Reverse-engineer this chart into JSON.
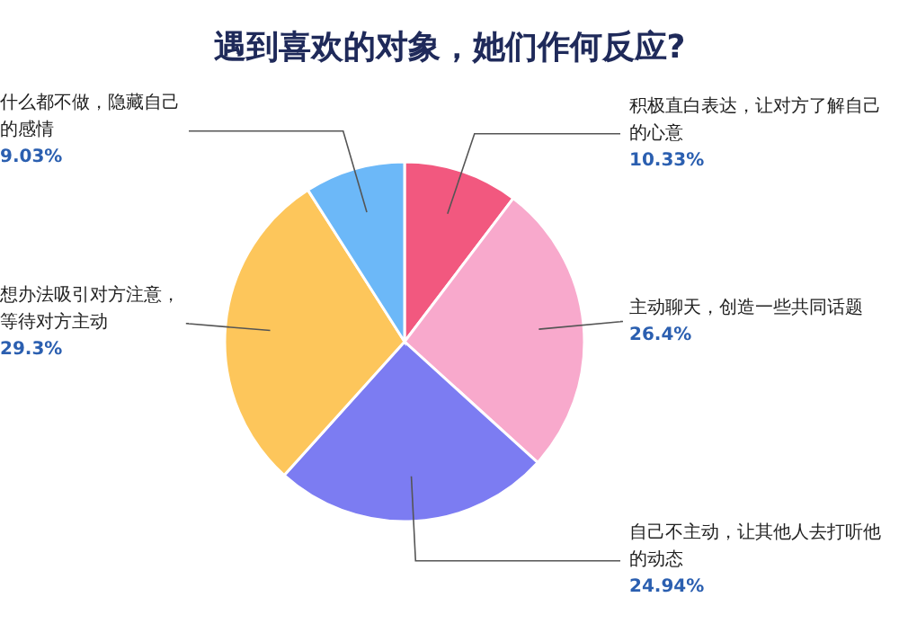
{
  "chart_data": {
    "type": "pie",
    "title": "遇到喜欢的对象，她们作何反应?",
    "categories": [
      "积极直白表达，让对方了解自己的心意",
      "主动聊天，创造一些共同话题",
      "自己不主动，让其他人去打听他的动态",
      "想办法吸引对方注意，等待对方主动",
      "什么都不做，隐藏自己的感情"
    ],
    "values": [
      10.33,
      26.4,
      24.94,
      29.3,
      9.03
    ],
    "value_labels": [
      "10.33%",
      "26.4%",
      "24.94%",
      "29.3%",
      "9.03%"
    ],
    "colors": [
      "#f2587f",
      "#f8a9cc",
      "#7c7cf2",
      "#fdc65b",
      "#6cb8f8"
    ]
  }
}
